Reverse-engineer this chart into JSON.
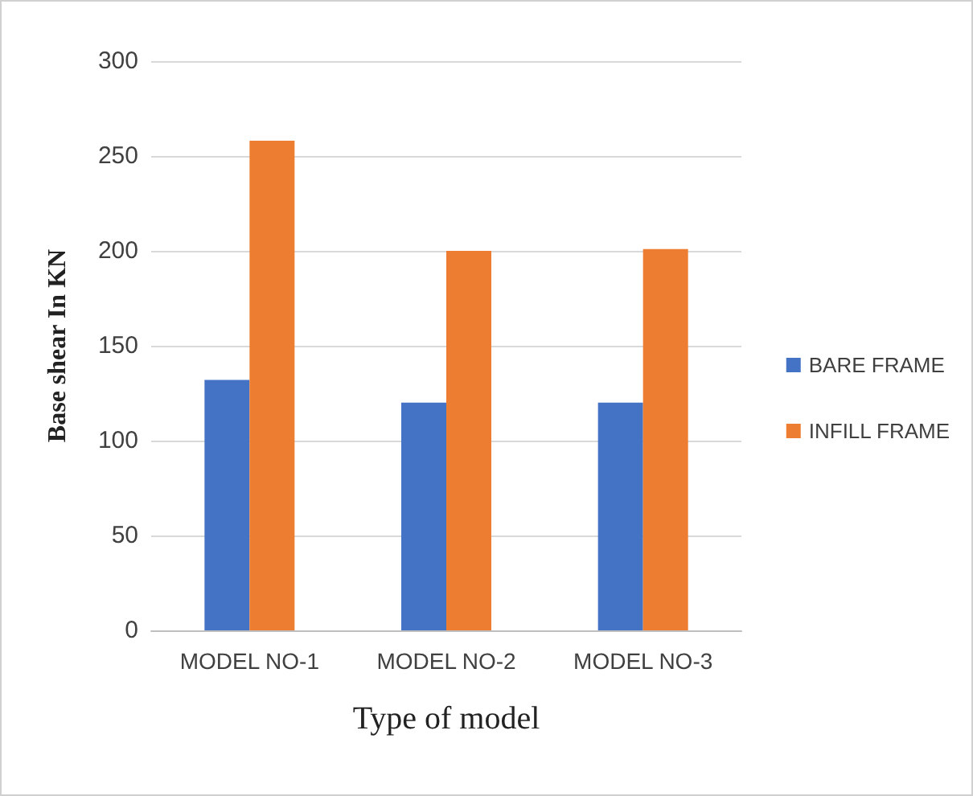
{
  "chart_data": {
    "type": "bar",
    "xlabel": "Type of model",
    "ylabel": "Base shear In KN",
    "categories": [
      "MODEL NO-1",
      "MODEL NO-2",
      "MODEL NO-3"
    ],
    "series": [
      {
        "name": "BARE FRAME",
        "color": "#4472c4",
        "values": [
          132,
          120,
          120
        ]
      },
      {
        "name": "INFILL FRAME",
        "color": "#ed7d31",
        "values": [
          258,
          200,
          201
        ]
      }
    ],
    "ylim": [
      0,
      300
    ],
    "yticks": [
      0,
      50,
      100,
      150,
      200,
      250,
      300
    ],
    "grid": "y",
    "legend": "right"
  }
}
